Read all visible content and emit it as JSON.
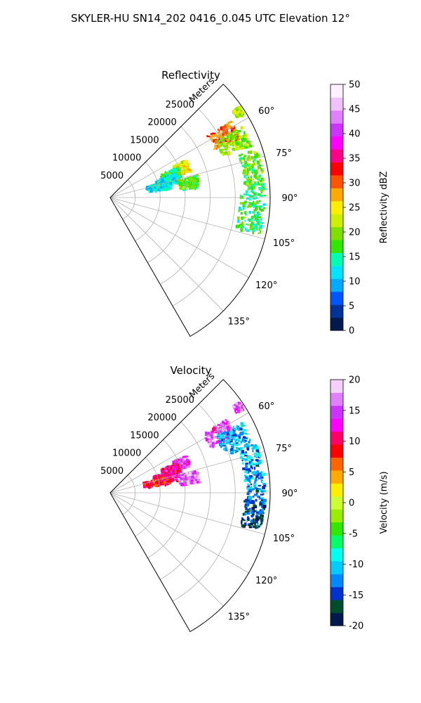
{
  "figure_title": "SKYLER-HU  SN14_202  0416_0.045 UTC Elevation 12°",
  "chart_data": [
    {
      "type": "polar-sector-radar",
      "title": "Reflectivity",
      "radial_axis_label": "Meters",
      "radial_ticks": [
        5000,
        10000,
        15000,
        20000,
        25000
      ],
      "radial_tick_labels": [
        "5000",
        "10000",
        "15000",
        "20000",
        "25000"
      ],
      "radial_range": [
        0,
        32000
      ],
      "azimuth_range_deg": [
        45,
        150
      ],
      "azimuth_gridlines_deg": [
        60,
        75,
        90,
        105,
        120,
        135
      ],
      "azimuth_tick_labels": [
        "60°",
        "75°",
        "90°",
        "105°",
        "120°",
        "135°"
      ],
      "grid": true,
      "colorbar": {
        "label": "Reflectivity dBZ",
        "range": [
          0,
          50
        ],
        "ticks": [
          0,
          5,
          10,
          15,
          20,
          25,
          30,
          35,
          40,
          45,
          50
        ],
        "colormap": [
          "#001a4d",
          "#003399",
          "#0055ff",
          "#00aaff",
          "#00e5ff",
          "#00ffb0",
          "#33e600",
          "#7fe000",
          "#ccf000",
          "#ffee00",
          "#ffaa00",
          "#ff5500",
          "#ff0000",
          "#ff0088",
          "#ff00ff",
          "#cc33ff",
          "#e080ff",
          "#f0c0ff",
          "#fff0ff"
        ]
      },
      "echo_regions": [
        {
          "az": [
            58,
            66
          ],
          "r": [
            23000,
            28500
          ],
          "value": 30
        },
        {
          "az": [
            62,
            70
          ],
          "r": [
            24000,
            30000
          ],
          "value": 20
        },
        {
          "az": [
            72,
            88
          ],
          "r": [
            27000,
            31000
          ],
          "value": 18
        },
        {
          "az": [
            88,
            104
          ],
          "r": [
            26000,
            31000
          ],
          "value": 16
        },
        {
          "az": [
            64,
            72
          ],
          "r": [
            14000,
            17000
          ],
          "value": 24
        },
        {
          "az": [
            66,
            74
          ],
          "r": [
            11000,
            15000
          ],
          "value": 17
        },
        {
          "az": [
            70,
            78
          ],
          "r": [
            9500,
            14000
          ],
          "value": 12
        },
        {
          "az": [
            74,
            82
          ],
          "r": [
            7500,
            12500
          ],
          "value": 12
        },
        {
          "az": [
            76,
            84
          ],
          "r": [
            14000,
            18000
          ],
          "value": 18
        },
        {
          "az": [
            55,
            58
          ],
          "r": [
            30000,
            31500
          ],
          "value": 22
        }
      ]
    },
    {
      "type": "polar-sector-radar",
      "title": "Velocity",
      "radial_axis_label": "Meters",
      "radial_ticks": [
        5000,
        10000,
        15000,
        20000,
        25000
      ],
      "radial_tick_labels": [
        "5000",
        "10000",
        "15000",
        "20000",
        "25000"
      ],
      "radial_range": [
        0,
        32000
      ],
      "azimuth_range_deg": [
        45,
        150
      ],
      "azimuth_gridlines_deg": [
        60,
        75,
        90,
        105,
        120,
        135
      ],
      "azimuth_tick_labels": [
        "60°",
        "75°",
        "90°",
        "105°",
        "120°",
        "135°"
      ],
      "grid": true,
      "colorbar": {
        "label": "Velocity (m/s)",
        "range": [
          -20,
          20
        ],
        "ticks": [
          -20,
          -15,
          -10,
          -5,
          0,
          5,
          10,
          15,
          20
        ],
        "colormap": [
          "#001a4d",
          "#004d2e",
          "#0033cc",
          "#0088ff",
          "#00ccff",
          "#00ffee",
          "#00ff66",
          "#33e600",
          "#99ee00",
          "#ccff33",
          "#ffee00",
          "#ffaa00",
          "#ff6600",
          "#ff0000",
          "#ff0066",
          "#ff00ff",
          "#cc33ff",
          "#e080ff",
          "#f5d0ff"
        ]
      },
      "echo_regions": [
        {
          "az": [
            58,
            66
          ],
          "r": [
            22000,
            27500
          ],
          "value": 15
        },
        {
          "az": [
            62,
            72
          ],
          "r": [
            24000,
            30000
          ],
          "value": -11
        },
        {
          "az": [
            72,
            90
          ],
          "r": [
            27000,
            31000
          ],
          "value": -12
        },
        {
          "az": [
            90,
            104
          ],
          "r": [
            27000,
            31000
          ],
          "value": -15
        },
        {
          "az": [
            64,
            72
          ],
          "r": [
            14000,
            17000
          ],
          "value": 15
        },
        {
          "az": [
            66,
            74
          ],
          "r": [
            11000,
            15000
          ],
          "value": 12
        },
        {
          "az": [
            70,
            80
          ],
          "r": [
            9000,
            14000
          ],
          "value": 11
        },
        {
          "az": [
            74,
            82
          ],
          "r": [
            7000,
            12500
          ],
          "value": 9
        },
        {
          "az": [
            76,
            84
          ],
          "r": [
            14000,
            18000
          ],
          "value": 16
        },
        {
          "az": [
            55,
            58
          ],
          "r": [
            30000,
            31500
          ],
          "value": 16
        }
      ]
    }
  ]
}
